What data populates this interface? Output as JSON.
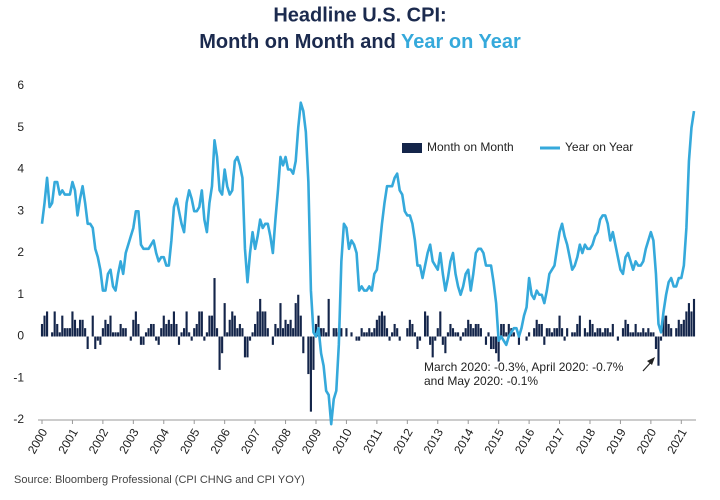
{
  "chart_data": {
    "type": "bar_line",
    "title": {
      "line1": "Headline U.S. CPI:",
      "line2": "Month on Month and",
      "line2_highlight": "Year on Year"
    },
    "categories": [
      "2000",
      null,
      null,
      null,
      null,
      null,
      null,
      null,
      null,
      null,
      null,
      null,
      "2001",
      null,
      null,
      null,
      null,
      null,
      null,
      null,
      null,
      null,
      null,
      null,
      "2002",
      null,
      null,
      null,
      null,
      null,
      null,
      null,
      null,
      null,
      null,
      null,
      "2003",
      null,
      null,
      null,
      null,
      null,
      null,
      null,
      null,
      null,
      null,
      null,
      "2004",
      null,
      null,
      null,
      null,
      null,
      null,
      null,
      null,
      null,
      null,
      null,
      "2005",
      null,
      null,
      null,
      null,
      null,
      null,
      null,
      null,
      null,
      null,
      null,
      "2006",
      null,
      null,
      null,
      null,
      null,
      null,
      null,
      null,
      null,
      null,
      null,
      "2007",
      null,
      null,
      null,
      null,
      null,
      null,
      null,
      null,
      null,
      null,
      null,
      "2008",
      null,
      null,
      null,
      null,
      null,
      null,
      null,
      null,
      null,
      null,
      null,
      "2009",
      null,
      null,
      null,
      null,
      null,
      null,
      null,
      null,
      null,
      null,
      null,
      "2010",
      null,
      null,
      null,
      null,
      null,
      null,
      null,
      null,
      null,
      null,
      null,
      "2011",
      null,
      null,
      null,
      null,
      null,
      null,
      null,
      null,
      null,
      null,
      null,
      "2012",
      null,
      null,
      null,
      null,
      null,
      null,
      null,
      null,
      null,
      null,
      null,
      "2013",
      null,
      null,
      null,
      null,
      null,
      null,
      null,
      null,
      null,
      null,
      null,
      "2014",
      null,
      null,
      null,
      null,
      null,
      null,
      null,
      null,
      null,
      null,
      null,
      "2015",
      null,
      null,
      null,
      null,
      null,
      null,
      null,
      null,
      null,
      null,
      null,
      "2016",
      null,
      null,
      null,
      null,
      null,
      null,
      null,
      null,
      null,
      null,
      null,
      "2017",
      null,
      null,
      null,
      null,
      null,
      null,
      null,
      null,
      null,
      null,
      null,
      "2018",
      null,
      null,
      null,
      null,
      null,
      null,
      null,
      null,
      null,
      null,
      null,
      "2019",
      null,
      null,
      null,
      null,
      null,
      null,
      null,
      null,
      null,
      null,
      null,
      "2020",
      null,
      null,
      null,
      null,
      null,
      null,
      null,
      null,
      null,
      null,
      null,
      "2021",
      null,
      null,
      null,
      null,
      null
    ],
    "series": [
      {
        "name": "Month on Month",
        "type": "bar",
        "color": "#14254a",
        "values": [
          0.3,
          0.5,
          0.6,
          0.0,
          0.1,
          0.6,
          0.3,
          0.1,
          0.5,
          0.2,
          0.2,
          0.2,
          0.6,
          0.4,
          0.2,
          0.4,
          0.4,
          0.2,
          -0.3,
          0.0,
          0.5,
          -0.3,
          -0.1,
          -0.2,
          0.2,
          0.4,
          0.3,
          0.5,
          0.1,
          0.1,
          0.1,
          0.3,
          0.2,
          0.2,
          0.0,
          -0.1,
          0.4,
          0.6,
          0.3,
          -0.2,
          -0.2,
          0.1,
          0.2,
          0.3,
          0.3,
          -0.1,
          -0.2,
          0.2,
          0.5,
          0.3,
          0.4,
          0.3,
          0.6,
          0.3,
          -0.2,
          0.1,
          0.2,
          0.6,
          0.1,
          -0.1,
          0.2,
          0.3,
          0.6,
          0.6,
          -0.1,
          0.1,
          0.5,
          0.5,
          1.4,
          0.2,
          -0.8,
          -0.4,
          0.8,
          0.1,
          0.4,
          0.6,
          0.5,
          0.2,
          0.3,
          0.2,
          -0.5,
          -0.5,
          -0.1,
          0.1,
          0.3,
          0.6,
          0.9,
          0.6,
          0.6,
          0.2,
          0.0,
          -0.2,
          0.3,
          0.2,
          0.8,
          0.2,
          0.4,
          0.3,
          0.4,
          0.2,
          0.8,
          1.0,
          0.5,
          -0.4,
          0.0,
          -0.9,
          -1.8,
          -0.8,
          0.3,
          0.5,
          0.2,
          0.2,
          0.1,
          0.9,
          0.0,
          0.2,
          0.2,
          0.1,
          0.2,
          0.0,
          0.2,
          0.0,
          0.1,
          0.0,
          -0.1,
          -0.1,
          0.2,
          0.1,
          0.1,
          0.2,
          0.1,
          0.2,
          0.4,
          0.5,
          0.6,
          0.5,
          0.2,
          -0.1,
          0.1,
          0.3,
          0.2,
          -0.1,
          0.0,
          0.0,
          0.2,
          0.4,
          0.3,
          0.1,
          -0.3,
          -0.1,
          0.0,
          0.6,
          0.5,
          -0.2,
          -0.5,
          -0.1,
          0.2,
          0.6,
          -0.2,
          -0.4,
          0.1,
          0.3,
          0.2,
          0.1,
          0.1,
          -0.1,
          0.1,
          0.2,
          0.4,
          0.3,
          0.2,
          0.3,
          0.3,
          0.2,
          0.0,
          -0.2,
          0.1,
          -0.3,
          -0.3,
          -0.4,
          -0.6,
          0.3,
          0.3,
          0.1,
          0.3,
          0.2,
          0.1,
          0.0,
          -0.2,
          0.0,
          0.0,
          -0.1,
          0.1,
          0.0,
          0.2,
          0.4,
          0.3,
          0.3,
          -0.2,
          0.2,
          0.2,
          0.1,
          0.2,
          0.2,
          0.5,
          0.2,
          -0.1,
          0.2,
          0.0,
          0.1,
          0.1,
          0.3,
          0.5,
          0.0,
          0.2,
          0.1,
          0.4,
          0.3,
          0.1,
          0.2,
          0.2,
          0.1,
          0.2,
          0.2,
          0.1,
          0.3,
          0.0,
          -0.1,
          0.0,
          0.2,
          0.4,
          0.3,
          0.1,
          0.1,
          0.3,
          0.1,
          0.1,
          0.2,
          0.1,
          0.2,
          0.1,
          0.1,
          -0.3,
          -0.7,
          -0.1,
          0.5,
          0.5,
          0.3,
          0.2,
          0.0,
          0.2,
          0.4,
          0.3,
          0.4,
          0.6,
          0.8,
          0.6,
          0.9
        ]
      },
      {
        "name": "Year on Year",
        "type": "line",
        "color": "#35a9db",
        "values": [
          2.7,
          3.2,
          3.8,
          3.1,
          3.2,
          3.7,
          3.7,
          3.4,
          3.5,
          3.4,
          3.4,
          3.4,
          3.7,
          3.5,
          2.9,
          3.3,
          3.6,
          3.2,
          2.7,
          2.7,
          2.6,
          2.1,
          1.9,
          1.6,
          1.1,
          1.1,
          1.5,
          1.6,
          1.2,
          1.1,
          1.5,
          1.8,
          1.5,
          2.0,
          2.2,
          2.4,
          2.6,
          3.0,
          3.0,
          2.2,
          2.1,
          2.1,
          2.1,
          2.2,
          2.3,
          2.0,
          1.8,
          1.9,
          1.9,
          1.7,
          1.7,
          2.3,
          3.1,
          3.3,
          3.0,
          2.7,
          2.5,
          3.2,
          3.5,
          3.3,
          3.0,
          3.0,
          3.1,
          3.5,
          2.8,
          2.5,
          3.2,
          3.6,
          4.7,
          4.3,
          3.5,
          3.4,
          4.0,
          3.6,
          3.4,
          3.5,
          4.2,
          4.3,
          4.1,
          3.8,
          2.1,
          1.3,
          2.0,
          2.5,
          2.1,
          2.4,
          2.8,
          2.6,
          2.7,
          2.7,
          2.4,
          2.0,
          2.8,
          3.5,
          4.3,
          4.1,
          4.3,
          4.0,
          4.0,
          3.9,
          4.2,
          5.0,
          5.6,
          5.4,
          4.9,
          3.7,
          1.1,
          0.1,
          0.0,
          0.2,
          -0.4,
          -0.7,
          -1.3,
          -1.4,
          -2.1,
          -1.5,
          -1.3,
          -0.2,
          1.8,
          2.7,
          2.6,
          2.1,
          2.3,
          2.2,
          2.0,
          1.1,
          1.2,
          1.1,
          1.1,
          1.2,
          1.1,
          1.5,
          1.6,
          2.1,
          2.7,
          3.2,
          3.6,
          3.6,
          3.6,
          3.8,
          3.9,
          3.5,
          3.4,
          3.0,
          2.9,
          2.9,
          2.7,
          2.3,
          1.7,
          1.7,
          1.4,
          1.7,
          2.0,
          2.2,
          1.8,
          1.7,
          1.6,
          2.0,
          1.5,
          1.1,
          1.4,
          1.8,
          2.0,
          1.5,
          1.2,
          1.0,
          1.2,
          1.5,
          1.6,
          1.1,
          1.5,
          2.0,
          2.1,
          2.1,
          2.0,
          1.7,
          1.7,
          1.7,
          1.3,
          0.8,
          -0.1,
          0.0,
          -0.1,
          -0.2,
          0.0,
          0.1,
          0.2,
          0.2,
          0.0,
          0.2,
          0.5,
          0.7,
          1.4,
          1.0,
          0.9,
          1.1,
          1.0,
          1.0,
          0.8,
          1.1,
          1.5,
          1.6,
          1.7,
          2.1,
          2.5,
          2.7,
          2.4,
          2.2,
          1.9,
          1.6,
          1.7,
          1.9,
          2.2,
          2.0,
          2.2,
          2.1,
          2.1,
          2.2,
          2.4,
          2.5,
          2.8,
          2.9,
          2.9,
          2.7,
          2.3,
          2.5,
          2.2,
          1.9,
          1.6,
          1.5,
          1.9,
          2.0,
          1.8,
          1.6,
          1.8,
          1.7,
          1.7,
          1.8,
          2.1,
          2.3,
          2.5,
          2.3,
          1.5,
          0.3,
          0.1,
          0.6,
          1.0,
          1.3,
          1.4,
          1.2,
          1.2,
          1.4,
          1.4,
          1.7,
          2.6,
          4.2,
          5.0,
          5.4
        ]
      }
    ],
    "ylim": [
      -2,
      6
    ],
    "yticks": [
      -2,
      -1,
      0,
      1,
      2,
      3,
      4,
      5,
      6
    ],
    "grid": false,
    "legend": "top-right",
    "annotation": [
      "March 2020: -0.3%, April 2020: -0.7%",
      "and May 2020: -0.1%"
    ],
    "source": "Source: Bloomberg Professional (CPI CHNG and CPI YOY)"
  }
}
